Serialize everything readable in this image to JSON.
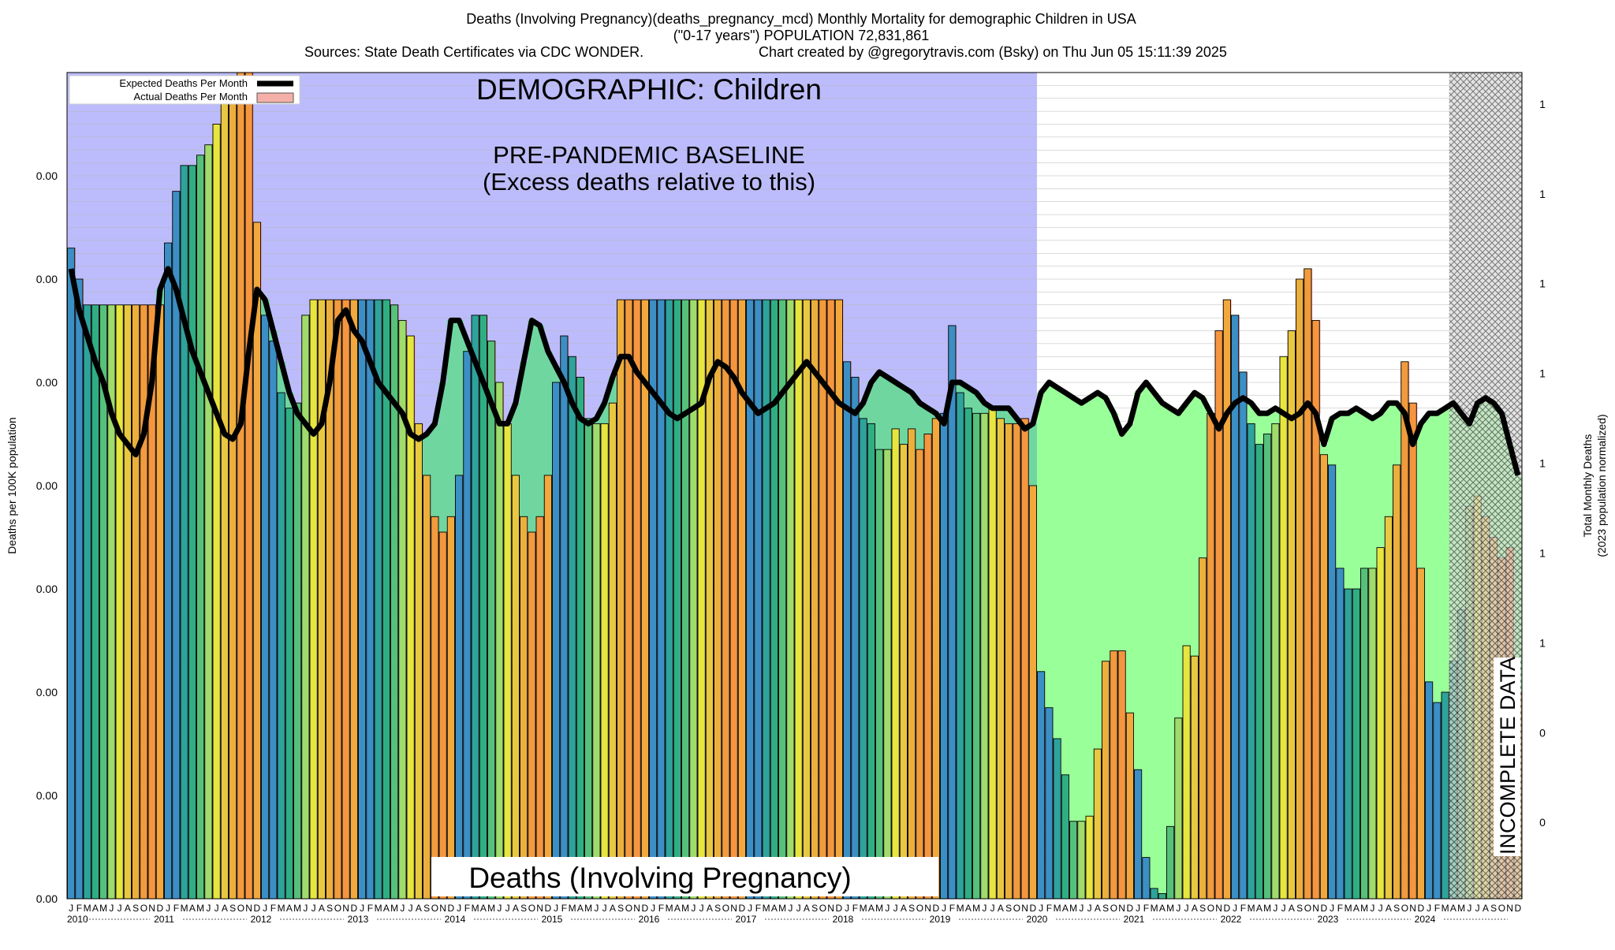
{
  "header": {
    "line1": "Deaths (Involving Pregnancy)(deaths_pregnancy_mcd) Monthly Mortality for demographic Children in USA",
    "line2": "(\"0-17 years\") POPULATION 72,831,861",
    "line3_left": "Sources: State Death Certificates via CDC WONDER.",
    "line3_right": "Chart created by @gregorytravis.com (Bsky) on Thu Jun 05 15:11:39 2025"
  },
  "legend": {
    "expected": "Expected Deaths Per Month",
    "actual": "Actual Deaths Per Month"
  },
  "annotations": {
    "demographic": "DEMOGRAPHIC: Children",
    "baseline_line1": "PRE-PANDEMIC BASELINE",
    "baseline_line2": "(Excess deaths relative to this)",
    "cause": "Deaths (Involving Pregnancy)",
    "incomplete": "INCOMPLETE DATA"
  },
  "chart_data": {
    "type": "bar",
    "ylabel": "Deaths per 100K population",
    "y2label_line1": "Total Monthly Deaths",
    "y2label_line2": "(2023 population normalized)",
    "y_ticks": [
      "0.00",
      "0.00",
      "0.00",
      "0.00",
      "0.00",
      "0.00",
      "0.00",
      "0.00"
    ],
    "y2_ticks": [
      "0",
      "0",
      "1",
      "1",
      "1",
      "1",
      "1",
      "1",
      "1"
    ],
    "month_letters": [
      "J",
      "F",
      "M",
      "A",
      "M",
      "J",
      "J",
      "A",
      "S",
      "O",
      "N",
      "D"
    ],
    "years": [
      "2010",
      "2011",
      "2012",
      "2013",
      "2014",
      "2015",
      "2016",
      "2017",
      "2018",
      "2019",
      "2020",
      "2021",
      "2022",
      "2023",
      "2024"
    ],
    "grid": true,
    "baseline_shaded_years": [
      "2010",
      "2019"
    ],
    "incomplete_from": "2024-04",
    "series": [
      {
        "name": "Actual Deaths Per Month",
        "values": [
          0.63,
          0.6,
          0.575,
          0.575,
          0.575,
          0.575,
          0.575,
          0.575,
          0.575,
          0.575,
          0.575,
          0.575,
          0.635,
          0.685,
          0.71,
          0.71,
          0.72,
          0.73,
          0.75,
          0.77,
          0.79,
          0.8,
          0.8,
          0.655,
          0.565,
          0.54,
          0.49,
          0.475,
          0.48,
          0.565,
          0.58,
          0.58,
          0.58,
          0.58,
          0.58,
          0.58,
          0.58,
          0.58,
          0.58,
          0.58,
          0.575,
          0.56,
          0.545,
          0.46,
          0.41,
          0.37,
          0.355,
          0.37,
          0.41,
          0.53,
          0.565,
          0.565,
          0.54,
          0.5,
          0.46,
          0.41,
          0.37,
          0.355,
          0.37,
          0.41,
          0.5,
          0.545,
          0.525,
          0.505,
          0.465,
          0.46,
          0.46,
          0.48,
          0.58,
          0.58,
          0.58,
          0.58,
          0.58,
          0.58,
          0.58,
          0.58,
          0.58,
          0.58,
          0.58,
          0.58,
          0.58,
          0.58,
          0.58,
          0.58,
          0.58,
          0.58,
          0.58,
          0.58,
          0.58,
          0.58,
          0.58,
          0.58,
          0.58,
          0.58,
          0.58,
          0.58,
          0.52,
          0.505,
          0.465,
          0.46,
          0.435,
          0.435,
          0.455,
          0.44,
          0.455,
          0.435,
          0.45,
          0.465,
          0.47,
          0.555,
          0.49,
          0.475,
          0.47,
          0.47,
          0.475,
          0.465,
          0.46,
          0.46,
          0.465,
          0.4,
          0.22,
          0.185,
          0.155,
          0.12,
          0.075,
          0.075,
          0.08,
          0.145,
          0.23,
          0.24,
          0.24,
          0.18,
          0.125,
          0.04,
          0.01,
          0.005,
          0.07,
          0.175,
          0.245,
          0.235,
          0.33,
          0.47,
          0.55,
          0.58,
          0.565,
          0.51,
          0.46,
          0.44,
          0.45,
          0.46,
          0.525,
          0.55,
          0.6,
          0.61,
          0.56,
          0.43,
          0.42,
          0.32,
          0.3,
          0.3,
          0.32,
          0.32,
          0.34,
          0.37,
          0.42,
          0.52,
          0.48,
          0.32,
          0.21,
          0.19,
          0.2,
          0.23,
          0.28,
          0.38,
          0.39,
          0.37,
          0.35,
          0.33,
          0.34,
          0.2
        ]
      },
      {
        "name": "Expected Deaths Per Month",
        "values": [
          0.61,
          0.57,
          0.545,
          0.52,
          0.5,
          0.47,
          0.45,
          0.44,
          0.43,
          0.45,
          0.5,
          0.59,
          0.61,
          0.59,
          0.56,
          0.53,
          0.51,
          0.49,
          0.47,
          0.45,
          0.445,
          0.46,
          0.53,
          0.59,
          0.58,
          0.55,
          0.52,
          0.49,
          0.47,
          0.46,
          0.45,
          0.46,
          0.5,
          0.56,
          0.57,
          0.55,
          0.54,
          0.52,
          0.5,
          0.49,
          0.48,
          0.47,
          0.45,
          0.445,
          0.45,
          0.46,
          0.5,
          0.56,
          0.56,
          0.54,
          0.52,
          0.5,
          0.48,
          0.46,
          0.46,
          0.48,
          0.52,
          0.56,
          0.555,
          0.53,
          0.515,
          0.5,
          0.48,
          0.465,
          0.46,
          0.465,
          0.48,
          0.505,
          0.525,
          0.525,
          0.51,
          0.5,
          0.49,
          0.48,
          0.47,
          0.465,
          0.47,
          0.475,
          0.48,
          0.505,
          0.52,
          0.515,
          0.505,
          0.49,
          0.48,
          0.47,
          0.475,
          0.48,
          0.49,
          0.5,
          0.51,
          0.52,
          0.51,
          0.5,
          0.49,
          0.48,
          0.475,
          0.47,
          0.48,
          0.5,
          0.51,
          0.505,
          0.5,
          0.495,
          0.49,
          0.48,
          0.475,
          0.47,
          0.46,
          0.5,
          0.5,
          0.495,
          0.49,
          0.48,
          0.475,
          0.475,
          0.475,
          0.465,
          0.455,
          0.46,
          0.49,
          0.5,
          0.495,
          0.49,
          0.485,
          0.48,
          0.485,
          0.49,
          0.485,
          0.47,
          0.45,
          0.46,
          0.49,
          0.5,
          0.49,
          0.48,
          0.475,
          0.47,
          0.48,
          0.49,
          0.485,
          0.47,
          0.455,
          0.47,
          0.48,
          0.485,
          0.48,
          0.47,
          0.47,
          0.475,
          0.47,
          0.465,
          0.47,
          0.48,
          0.47,
          0.44,
          0.465,
          0.47,
          0.47,
          0.475,
          0.47,
          0.465,
          0.47,
          0.48,
          0.48,
          0.47,
          0.44,
          0.46,
          0.47,
          0.47,
          0.475,
          0.48,
          0.47,
          0.46,
          0.48,
          0.485,
          0.48,
          0.47,
          0.44,
          0.41
        ]
      }
    ]
  },
  "colors": {
    "baseline_fill": "#bcbcfc",
    "deficit_fill": "#99ff99",
    "deficit_fill_in_baseline": "#6fd6a0",
    "excess_fill": "#ff7f7f",
    "bar_palette": [
      "#3b8fc4",
      "#3b8fc4",
      "#2ea39b",
      "#2fae84",
      "#55c17a",
      "#9fdc6b",
      "#e6e63e",
      "#e8c840",
      "#ecaf3c",
      "#f19b3d",
      "#f5963e",
      "#f2a83c"
    ],
    "expected_line": "#000000"
  }
}
